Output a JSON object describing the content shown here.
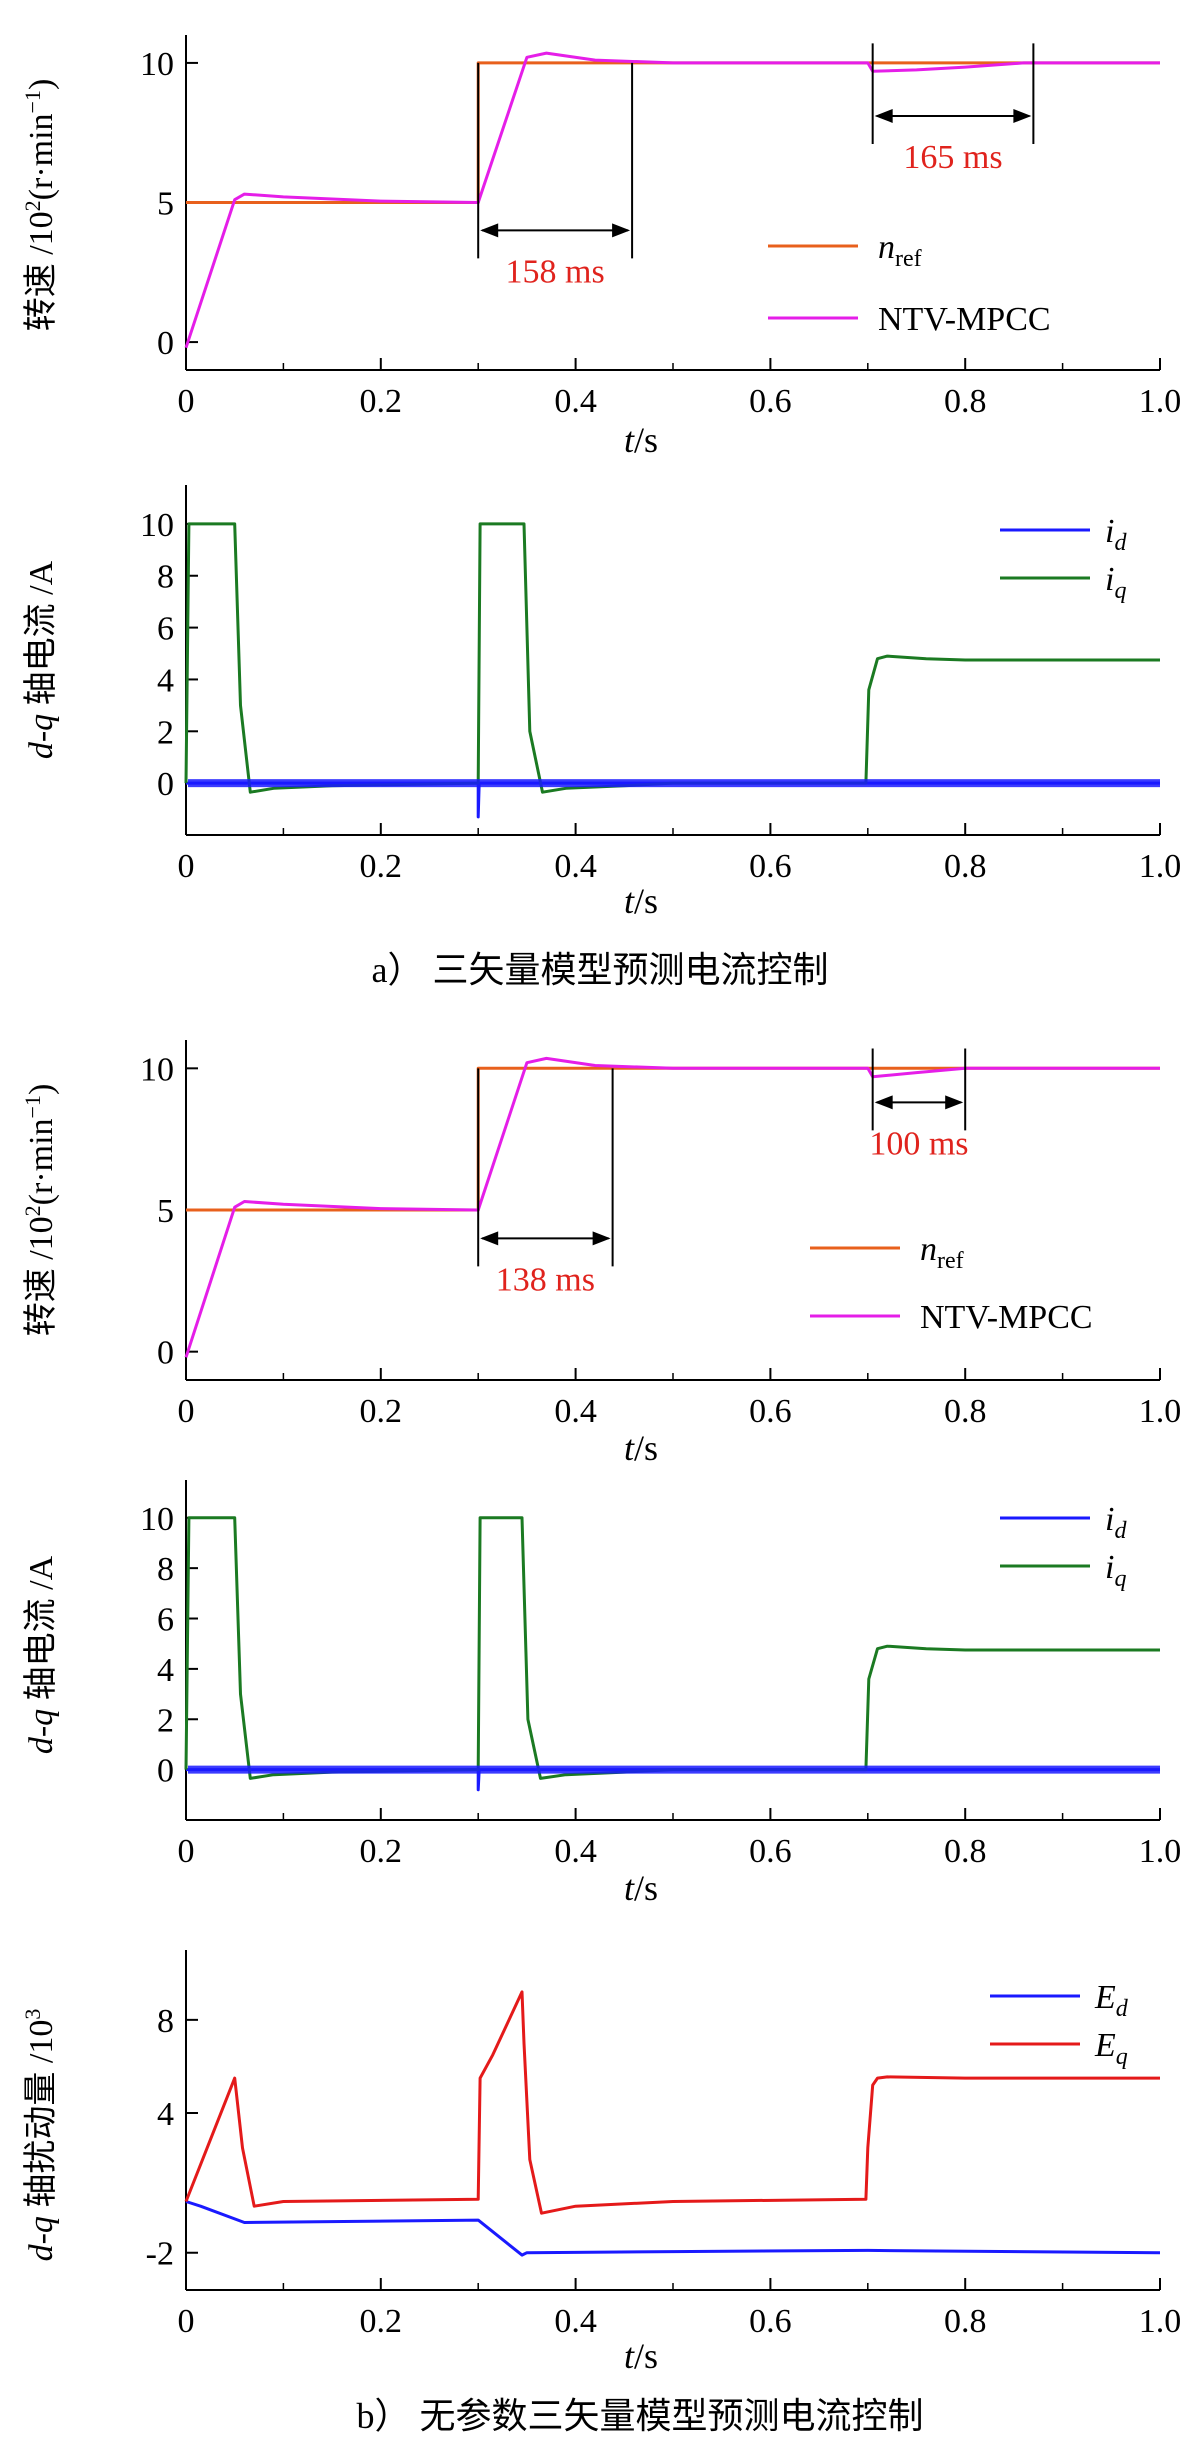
{
  "colors": {
    "n_ref": "#e8601c",
    "ntv": "#e51ee8",
    "id": "#1a1aff",
    "iq": "#1b7a22",
    "Ed": "#1a1aff",
    "Eq": "#e41a1a",
    "annotation": "#e0231d"
  },
  "captions": {
    "a": "a）  三矢量模型预测电流控制",
    "b": "b）  无参数三矢量模型预测电流控制"
  },
  "chart_data": [
    {
      "id": "speed_a",
      "type": "line",
      "xlim": [
        0,
        1.0
      ],
      "ylim": [
        -1,
        11
      ],
      "xticks": [
        "0",
        "0.2",
        "0.4",
        "0.6",
        "0.8",
        "1.0"
      ],
      "yticks": [
        {
          "v": 0,
          "label": "0"
        },
        {
          "v": 5,
          "label": "5"
        },
        {
          "v": 10,
          "label": "10"
        }
      ],
      "ylabel": "转速 /10²(r·min⁻¹)",
      "xlabel": "t/s",
      "legend": {
        "position": "bottom-right",
        "labels": [
          "n_ref",
          "NTV-MPCC"
        ]
      },
      "series": [
        {
          "name": "n_ref",
          "color_key": "n_ref",
          "x": [
            0,
            0.3,
            0.3,
            1.0
          ],
          "y": [
            5,
            5,
            10,
            10
          ]
        },
        {
          "name": "NTV-MPCC",
          "color_key": "ntv",
          "x": [
            0,
            0.05,
            0.06,
            0.1,
            0.2,
            0.3,
            0.35,
            0.37,
            0.42,
            0.5,
            0.7,
            0.705,
            0.75,
            0.8,
            0.86,
            1.0
          ],
          "y": [
            -0.2,
            5.1,
            5.3,
            5.2,
            5.05,
            5.0,
            10.2,
            10.35,
            10.1,
            10.0,
            10.0,
            9.7,
            9.75,
            9.85,
            10.0,
            10.0
          ]
        }
      ],
      "annotations": [
        {
          "label": "158 ms",
          "x1": 0.3,
          "x2": 0.458,
          "y": 4.0
        },
        {
          "label": "165 ms",
          "x1": 0.705,
          "x2": 0.87,
          "y": 8.1
        }
      ]
    },
    {
      "id": "current_a",
      "type": "line",
      "xlim": [
        0,
        1.0
      ],
      "ylim": [
        -2,
        11.5
      ],
      "xticks": [
        "0",
        "0.2",
        "0.4",
        "0.6",
        "0.8",
        "1.0"
      ],
      "yticks": [
        {
          "v": 0,
          "label": "0"
        },
        {
          "v": 2,
          "label": "2"
        },
        {
          "v": 4,
          "label": "4"
        },
        {
          "v": 6,
          "label": "6"
        },
        {
          "v": 8,
          "label": "8"
        },
        {
          "v": 10,
          "label": "10"
        }
      ],
      "ylabel": "d-q 轴电流 /A",
      "xlabel": "t/s",
      "legend": {
        "position": "top-right",
        "labels": [
          "i_d",
          "i_q"
        ]
      },
      "series": [
        {
          "name": "i_d",
          "color_key": "id",
          "x": [
            0,
            0.3,
            0.3,
            0.301,
            0.302,
            1.0
          ],
          "y": [
            0,
            0,
            -1.3,
            0,
            0,
            0
          ]
        },
        {
          "name": "i_q",
          "color_key": "iq",
          "x": [
            0,
            0.003,
            0.05,
            0.056,
            0.066,
            0.09,
            0.15,
            0.3,
            0.302,
            0.347,
            0.353,
            0.366,
            0.39,
            0.45,
            0.5,
            0.698,
            0.701,
            0.71,
            0.72,
            0.76,
            0.8,
            1.0
          ],
          "y": [
            0,
            10,
            10,
            3,
            -0.35,
            -0.2,
            -0.1,
            0,
            10,
            10,
            2,
            -0.35,
            -0.2,
            -0.1,
            0,
            0,
            3.6,
            4.8,
            4.9,
            4.8,
            4.75,
            4.75
          ]
        }
      ]
    },
    {
      "id": "speed_b",
      "type": "line",
      "xlim": [
        0,
        1.0
      ],
      "ylim": [
        -1,
        11
      ],
      "xticks": [
        "0",
        "0.2",
        "0.4",
        "0.6",
        "0.8",
        "1.0"
      ],
      "yticks": [
        {
          "v": 0,
          "label": "0"
        },
        {
          "v": 5,
          "label": "5"
        },
        {
          "v": 10,
          "label": "10"
        }
      ],
      "ylabel": "转速 /10²(r·min⁻¹)",
      "xlabel": "t/s",
      "legend": {
        "position": "bottom-right",
        "labels": [
          "n_ref",
          "NTV-MPCC"
        ]
      },
      "series": [
        {
          "name": "n_ref",
          "color_key": "n_ref",
          "x": [
            0,
            0.3,
            0.3,
            1.0
          ],
          "y": [
            5,
            5,
            10,
            10
          ]
        },
        {
          "name": "NTV-MPCC",
          "color_key": "ntv",
          "x": [
            0,
            0.05,
            0.06,
            0.1,
            0.2,
            0.3,
            0.35,
            0.37,
            0.42,
            0.5,
            0.7,
            0.705,
            0.75,
            0.8,
            1.0
          ],
          "y": [
            -0.2,
            5.1,
            5.3,
            5.2,
            5.05,
            5.0,
            10.2,
            10.35,
            10.1,
            10.0,
            10.0,
            9.7,
            9.85,
            10.0,
            10.0
          ]
        }
      ],
      "annotations": [
        {
          "label": "138 ms",
          "x1": 0.3,
          "x2": 0.438,
          "y": 4.0
        },
        {
          "label": "100 ms",
          "x1": 0.705,
          "x2": 0.8,
          "y": 8.8
        }
      ]
    },
    {
      "id": "current_b",
      "type": "line",
      "xlim": [
        0,
        1.0
      ],
      "ylim": [
        -2,
        11.5
      ],
      "xticks": [
        "0",
        "0.2",
        "0.4",
        "0.6",
        "0.8",
        "1.0"
      ],
      "yticks": [
        {
          "v": 0,
          "label": "0"
        },
        {
          "v": 2,
          "label": "2"
        },
        {
          "v": 4,
          "label": "4"
        },
        {
          "v": 6,
          "label": "6"
        },
        {
          "v": 8,
          "label": "8"
        },
        {
          "v": 10,
          "label": "10"
        }
      ],
      "ylabel": "d-q 轴电流 /A",
      "xlabel": "t/s",
      "legend": {
        "position": "top-right",
        "labels": [
          "i_d",
          "i_q"
        ]
      },
      "series": [
        {
          "name": "i_d",
          "color_key": "id",
          "x": [
            0,
            0.3,
            0.3,
            0.301,
            0.302,
            1.0
          ],
          "y": [
            0,
            0,
            -0.8,
            0,
            0,
            0
          ]
        },
        {
          "name": "i_q",
          "color_key": "iq",
          "x": [
            0,
            0.003,
            0.05,
            0.056,
            0.066,
            0.09,
            0.15,
            0.3,
            0.302,
            0.345,
            0.351,
            0.364,
            0.39,
            0.45,
            0.5,
            0.698,
            0.701,
            0.71,
            0.72,
            0.76,
            0.8,
            1.0
          ],
          "y": [
            0,
            10,
            10,
            3,
            -0.35,
            -0.2,
            -0.1,
            0,
            10,
            10,
            2,
            -0.35,
            -0.2,
            -0.1,
            0,
            0,
            3.6,
            4.8,
            4.9,
            4.8,
            4.75,
            4.75
          ]
        }
      ]
    },
    {
      "id": "disturbance_b",
      "type": "line",
      "xlim": [
        0,
        1.0
      ],
      "ylim": [
        -3.6,
        11
      ],
      "xticks": [
        "0",
        "0.2",
        "0.4",
        "0.6",
        "0.8",
        "1.0"
      ],
      "yticks": [
        {
          "v": -2,
          "label": "-2"
        },
        {
          "v": 4,
          "label": "4"
        },
        {
          "v": 8,
          "label": "8"
        }
      ],
      "ylabel": "d-q 轴扰动量 /10³",
      "xlabel": "t/s",
      "legend": {
        "position": "top-right",
        "labels": [
          "E_d",
          "E_q"
        ]
      },
      "series": [
        {
          "name": "E_d",
          "color_key": "Ed",
          "x": [
            0,
            0.015,
            0.06,
            0.3,
            0.345,
            0.35,
            0.5,
            0.7,
            1.0
          ],
          "y": [
            0.2,
            0,
            -0.7,
            -0.6,
            -2.1,
            -2.0,
            -1.95,
            -1.9,
            -2.0
          ]
        },
        {
          "name": "E_q",
          "color_key": "Eq",
          "x": [
            0,
            0.05,
            0.058,
            0.07,
            0.1,
            0.3,
            0.302,
            0.315,
            0.345,
            0.347,
            0.353,
            0.365,
            0.4,
            0.5,
            0.698,
            0.7,
            0.705,
            0.71,
            0.72,
            0.8,
            1.0
          ],
          "y": [
            0.2,
            5.5,
            2.5,
            0,
            0.2,
            0.3,
            5.5,
            6.5,
            9.2,
            7,
            2,
            -0.3,
            0,
            0.2,
            0.3,
            2.5,
            5.2,
            5.5,
            5.55,
            5.5,
            5.5
          ]
        }
      ]
    }
  ]
}
